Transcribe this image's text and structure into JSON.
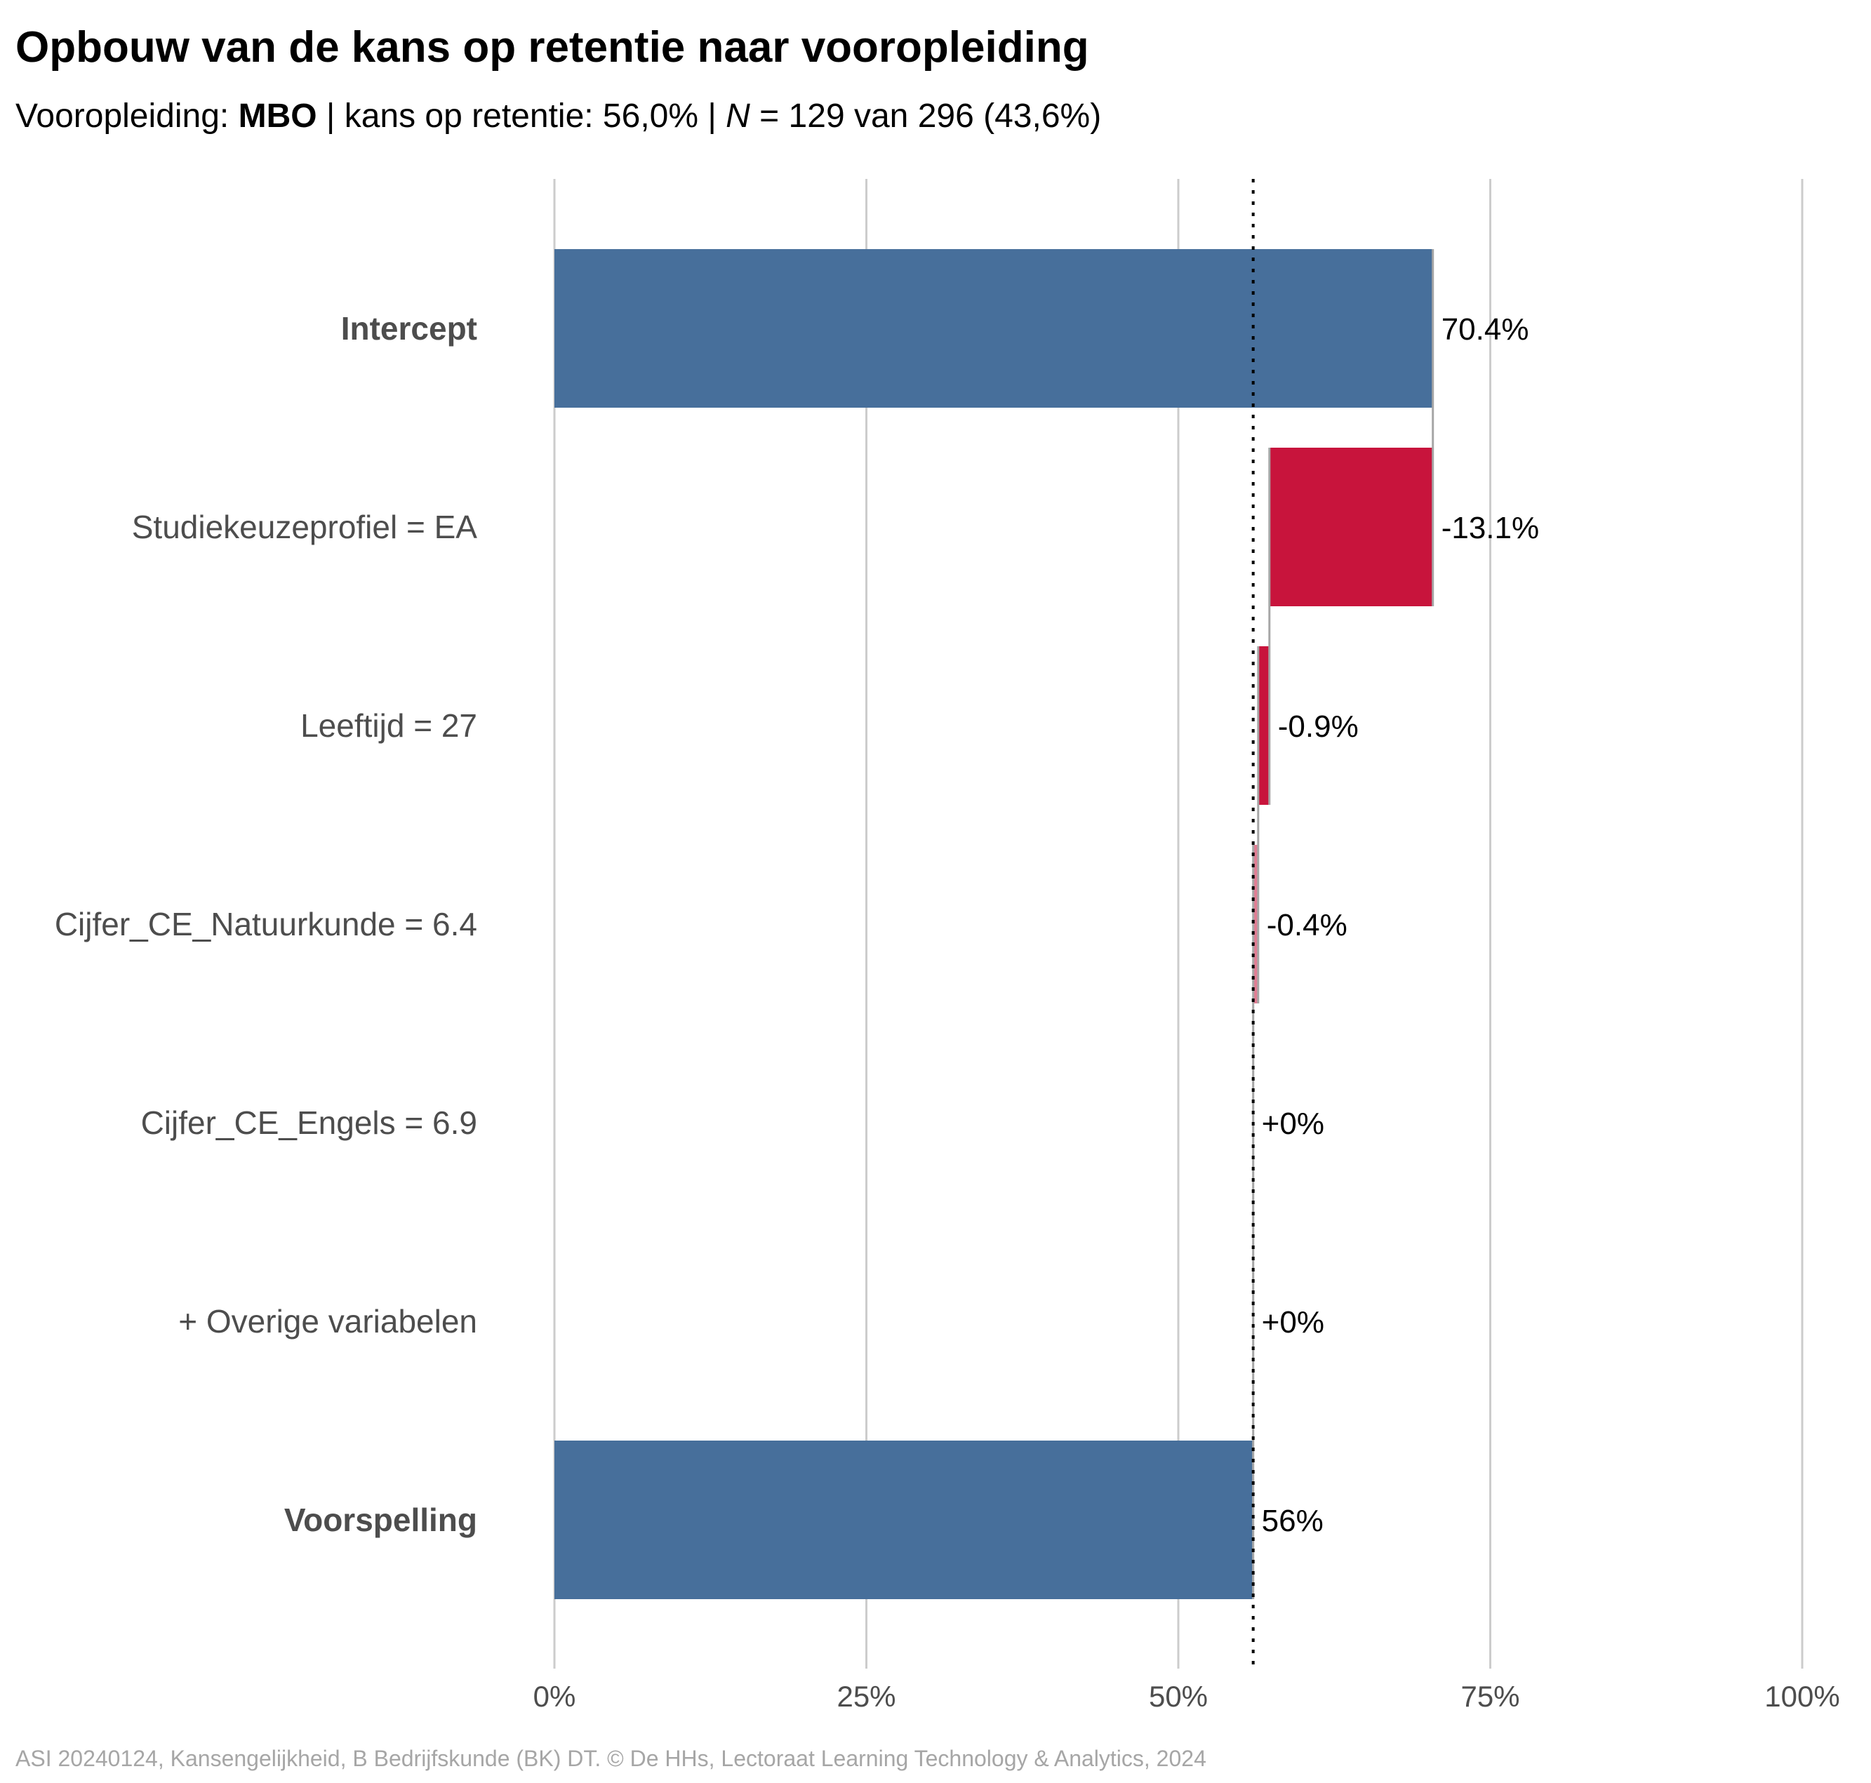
{
  "chart_data": {
    "type": "bar",
    "subtype": "waterfall",
    "title": "Opbouw van de kans op retentie naar vooropleiding",
    "subtitle": {
      "prefix": "Vooropleiding: ",
      "group": "MBO",
      "middle": " | kans op retentie: 56,0% | ",
      "n_symbol": "N",
      "n_text": " = 129 van 296 (43,6%)"
    },
    "caption": "ASI 20240124, Kansengelijkheid, B Bedrijfskunde (BK) DT. © De HHs, Lectoraat Learning Technology & Analytics, 2024",
    "xlim": [
      0,
      100
    ],
    "x_ticks": [
      {
        "value": 0,
        "label": "0%"
      },
      {
        "value": 25,
        "label": "25%"
      },
      {
        "value": 50,
        "label": "50%"
      },
      {
        "value": 75,
        "label": "75%"
      },
      {
        "value": 100,
        "label": "100%"
      }
    ],
    "reference_line": 56.0,
    "grid": true,
    "legend": "none",
    "colors": {
      "total": "#476f9b",
      "negative": "#c8143c",
      "grid": "#cccccc",
      "connector": "#a6a6a6",
      "label": "#4d4d4d"
    },
    "bars": [
      {
        "label": "Intercept",
        "kind": "total",
        "start": 0,
        "end": 70.4,
        "value_label": "70.4%",
        "bold": true
      },
      {
        "label": "Studiekeuzeprofiel = EA",
        "kind": "negative",
        "start": 70.4,
        "end": 57.3,
        "value_label": "-13.1%",
        "bold": false
      },
      {
        "label": "Leeftijd = 27",
        "kind": "negative",
        "start": 57.3,
        "end": 56.4,
        "value_label": "-0.9%",
        "bold": false
      },
      {
        "label": "Cijfer_CE_Natuurkunde = 6.4",
        "kind": "negative",
        "start": 56.4,
        "end": 56.0,
        "value_label": "-0.4%",
        "bold": false
      },
      {
        "label": "Cijfer_CE_Engels = 6.9",
        "kind": "zero",
        "start": 56.0,
        "end": 56.0,
        "value_label": "+0%",
        "bold": false
      },
      {
        "label": "+ Overige variabelen",
        "kind": "zero",
        "start": 56.0,
        "end": 56.0,
        "value_label": "+0%",
        "bold": false
      },
      {
        "label": "Voorspelling",
        "kind": "total",
        "start": 0,
        "end": 56.0,
        "value_label": "56%",
        "bold": true
      }
    ]
  }
}
